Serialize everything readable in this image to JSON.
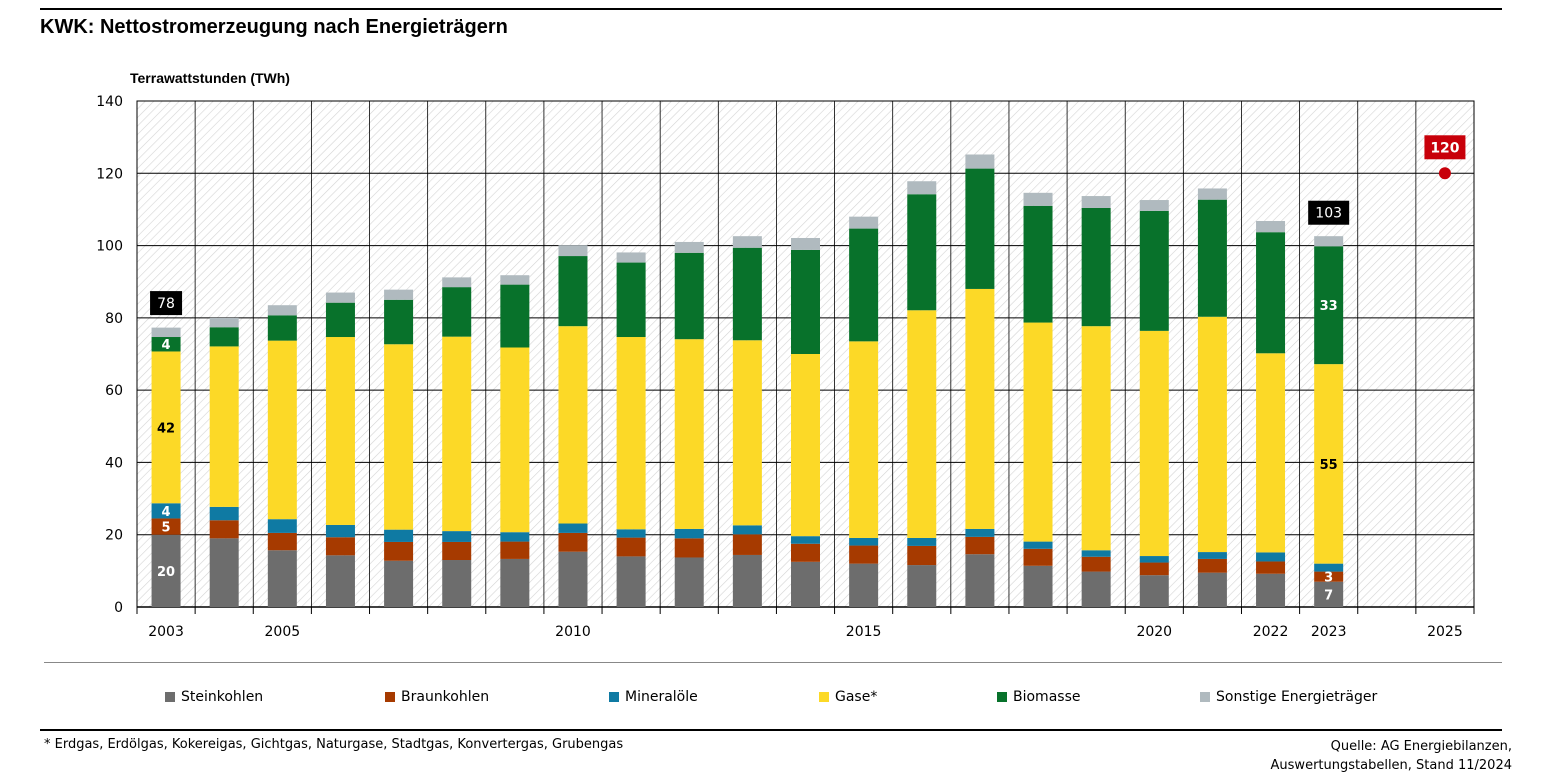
{
  "title": "KWK: Nettostromerzeugung nach Energieträgern",
  "footnote": "* Erdgas, Erdölgas, Kokereigas, Gichtgas, Naturgase, Stadtgas, Konvertergas, Grubengas",
  "source_line1": "Quelle: AG Energiebilanzen,",
  "source_line2": "Auswertungstabellen, Stand 11/2024",
  "colors": {
    "steinkohlen": "#6d6d6d",
    "braunkohlen": "#a63a00",
    "mineraloele": "#0f7aa3",
    "gase": "#fcd927",
    "biomasse": "#08722b",
    "sonstige": "#b0babf",
    "target": "#c8000a"
  },
  "chart_data": {
    "type": "bar",
    "stacked": true,
    "ylabel": "Terrawattstunden (TWh)",
    "ylim": [
      0,
      140
    ],
    "yticks": [
      0,
      20,
      40,
      60,
      80,
      100,
      120,
      140
    ],
    "grid": true,
    "legend_position": "bottom",
    "categories": [
      "2003",
      "2004",
      "2005",
      "2006",
      "2007",
      "2008",
      "2009",
      "2010",
      "2011",
      "2012",
      "2013",
      "2014",
      "2015",
      "2016",
      "2017",
      "2018",
      "2019",
      "2020",
      "2021",
      "2022",
      "2023",
      "2024",
      "2025"
    ],
    "x_tick_labels": [
      "2003",
      "",
      "2005",
      "",
      "",
      "",
      "",
      "2010",
      "",
      "",
      "",
      "",
      "2015",
      "",
      "",
      "",
      "",
      "2020",
      "",
      "2022",
      "2023",
      "",
      "2025"
    ],
    "series": [
      {
        "name": "Steinkohlen",
        "color_key": "steinkohlen",
        "values": [
          20,
          19,
          15.7,
          14.3,
          12.8,
          13,
          13.3,
          15.3,
          14,
          13.7,
          14.4,
          12.5,
          12,
          11.6,
          14.6,
          11.4,
          9.8,
          8.8,
          9.5,
          9.2,
          7,
          null,
          null
        ]
      },
      {
        "name": "Braunkohlen",
        "color_key": "braunkohlen",
        "values": [
          4.5,
          5,
          4.8,
          5,
          5.2,
          5,
          4.8,
          5.2,
          5.2,
          5.3,
          5.7,
          5,
          5,
          5.3,
          4.8,
          4.7,
          4.1,
          3.5,
          3.8,
          3.4,
          2.8,
          null,
          null
        ]
      },
      {
        "name": "Mineralöle",
        "color_key": "mineraloele",
        "values": [
          4.2,
          3.7,
          3.8,
          3.4,
          3.4,
          3,
          2.6,
          2.6,
          2.3,
          2.6,
          2.5,
          2.1,
          2.1,
          2.2,
          2.2,
          2,
          1.8,
          1.8,
          1.9,
          2.5,
          2.2,
          null,
          null
        ]
      },
      {
        "name": "Gase*",
        "color_key": "gase",
        "values": [
          42,
          44.4,
          49.4,
          52,
          51.3,
          53.8,
          51.1,
          54.6,
          53.2,
          52.5,
          51.2,
          50.4,
          54.4,
          63,
          66.4,
          60.6,
          62,
          62.3,
          65.1,
          55.1,
          55.2,
          null,
          null
        ]
      },
      {
        "name": "Biomasse",
        "color_key": "biomasse",
        "values": [
          4,
          5.3,
          7,
          9.5,
          12.3,
          13.7,
          17.4,
          19.4,
          20.6,
          23.9,
          25.6,
          28.8,
          31.2,
          32.1,
          33.3,
          32.3,
          32.7,
          33.2,
          32.4,
          33.5,
          32.6,
          null,
          null
        ]
      },
      {
        "name": "Sonstige Energieträger",
        "color_key": "sonstige",
        "values": [
          2.6,
          2.6,
          2.8,
          2.8,
          2.8,
          2.7,
          2.6,
          3,
          2.8,
          3,
          3.2,
          3.3,
          3.3,
          3.6,
          3.9,
          3.6,
          3.3,
          3,
          3.1,
          3.1,
          2.8,
          null,
          null
        ]
      }
    ],
    "data_labels": [
      {
        "category": "2003",
        "series": "Steinkohlen",
        "text": "20"
      },
      {
        "category": "2003",
        "series": "Braunkohlen",
        "text": "5"
      },
      {
        "category": "2003",
        "series": "Mineralöle",
        "text": "4"
      },
      {
        "category": "2003",
        "series": "Gase*",
        "text": "42"
      },
      {
        "category": "2003",
        "series": "Biomasse",
        "text": "4"
      },
      {
        "category": "2023",
        "series": "Steinkohlen",
        "text": "7"
      },
      {
        "category": "2023",
        "series": "Braunkohlen",
        "text": "3"
      },
      {
        "category": "2023",
        "series": "Gase*",
        "text": "55"
      },
      {
        "category": "2023",
        "series": "Biomasse",
        "text": "33"
      }
    ],
    "total_labels": [
      {
        "category": "2003",
        "value": 78,
        "text": "78"
      },
      {
        "category": "2023",
        "value": 103,
        "text": "103"
      }
    ],
    "target_point": {
      "category": "2025",
      "value": 120,
      "text": "120"
    }
  }
}
